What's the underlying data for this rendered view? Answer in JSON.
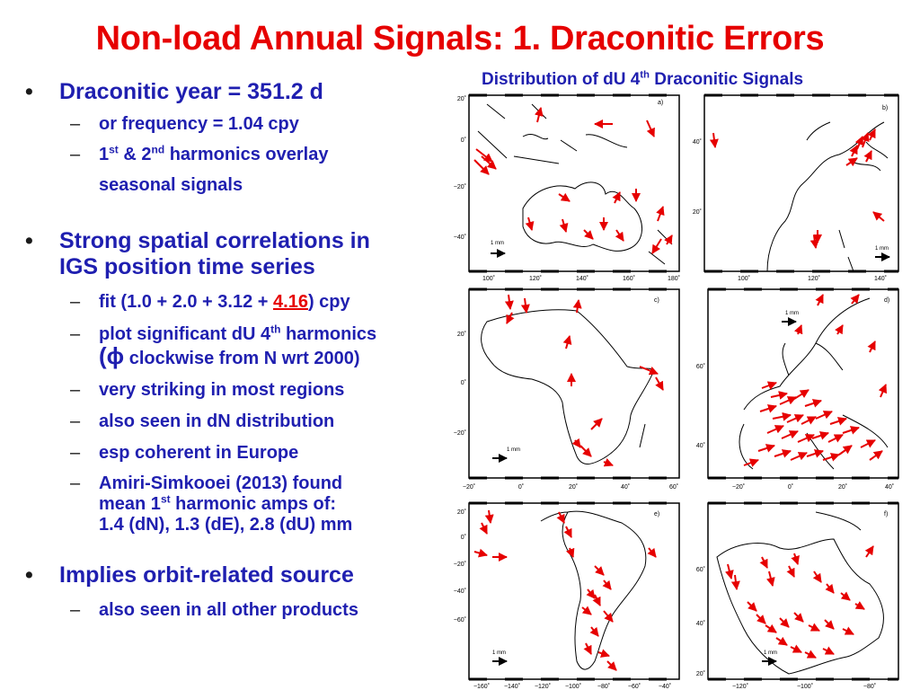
{
  "title": "Non-load Annual Signals:  1. Draconitic Errors",
  "bullets": {
    "b1": {
      "term": "Draconitic",
      "rest": " year = 351.2 d"
    },
    "b1_sub1": "or frequency = 1.04 cpy",
    "b1_sub2": {
      "p1": "1",
      "sup1": "st",
      "p2": " & 2",
      "sup2": "nd",
      "p3": " harmonics overlay",
      "line2": "seasonal signals"
    },
    "b2": {
      "line1": "Strong spatial correlations in",
      "line2": "IGS position time series"
    },
    "b2_sub1": {
      "pre": "fit (1.0 + 2.0 + 3.12 + ",
      "highlight": "4.16",
      "post": ") cpy"
    },
    "b2_sub2": {
      "pre": "plot significant dU 4",
      "sup": "th",
      "post": " harmonics",
      "phi": "(ϕ",
      "line2": " clockwise from N wrt 2000)"
    },
    "b2_sub3": "very striking in most regions",
    "b2_sub4": "also seen in dN distribution",
    "b2_sub5": "esp coherent in Europe",
    "b2_sub6": {
      "line1": "Amiri-Simkooei (2013) found",
      "line2_pre": "mean 1",
      "line2_sup": "st",
      "line2_post": " harmonic amps of:",
      "line3": "1.4 (dN), 1.3 (dE), 2.8 (dU) mm"
    },
    "b3": "Implies orbit-related source",
    "b3_sub1": "also seen in all other products",
    "bullet_char": "•",
    "dash_char": "–"
  },
  "map_title": {
    "pre": "Distribution of dU 4",
    "sup": "th",
    "post": " Draconitic Signals"
  },
  "panels": {
    "a": {
      "label": "a)",
      "scale": "1 mm",
      "lat_labels": [
        "20˚",
        "0˚",
        "−20˚",
        "−40˚"
      ],
      "lon_labels": [
        "100˚",
        "120˚",
        "140˚",
        "160˚",
        "180˚"
      ]
    },
    "b": {
      "label": "b)",
      "scale": "1 mm",
      "lat_labels": [
        "40˚",
        "20˚"
      ],
      "lon_labels": [
        "100˚",
        "120˚",
        "140˚"
      ]
    },
    "c": {
      "label": "c)",
      "scale": "1 mm",
      "lat_labels": [
        "20˚",
        "0˚",
        "−20˚"
      ],
      "lon_labels": [
        "−20˚",
        "0˚",
        "20˚",
        "40˚",
        "60˚"
      ]
    },
    "d": {
      "label": "d)",
      "scale": "1 mm",
      "lat_labels": [
        "60˚",
        "40˚"
      ],
      "lon_labels": [
        "−20˚",
        "0˚",
        "20˚",
        "40˚"
      ]
    },
    "e": {
      "label": "e)",
      "scale": "1 mm",
      "lat_labels": [
        "20˚",
        "0˚",
        "−20˚",
        "−40˚",
        "−60˚"
      ],
      "lon_labels": [
        "−160˚",
        "−140˚",
        "−120˚",
        "−100˚",
        "−80˚",
        "−60˚",
        "−40˚"
      ]
    },
    "f": {
      "label": "f)",
      "scale": "1 mm",
      "lat_labels": [
        "60˚",
        "40˚",
        "20˚"
      ],
      "lon_labels": [
        "−120˚",
        "−100˚",
        "−80˚"
      ]
    }
  },
  "colors": {
    "title": "#e60000",
    "text": "#1f1fb0",
    "arrows": "#e60000"
  }
}
